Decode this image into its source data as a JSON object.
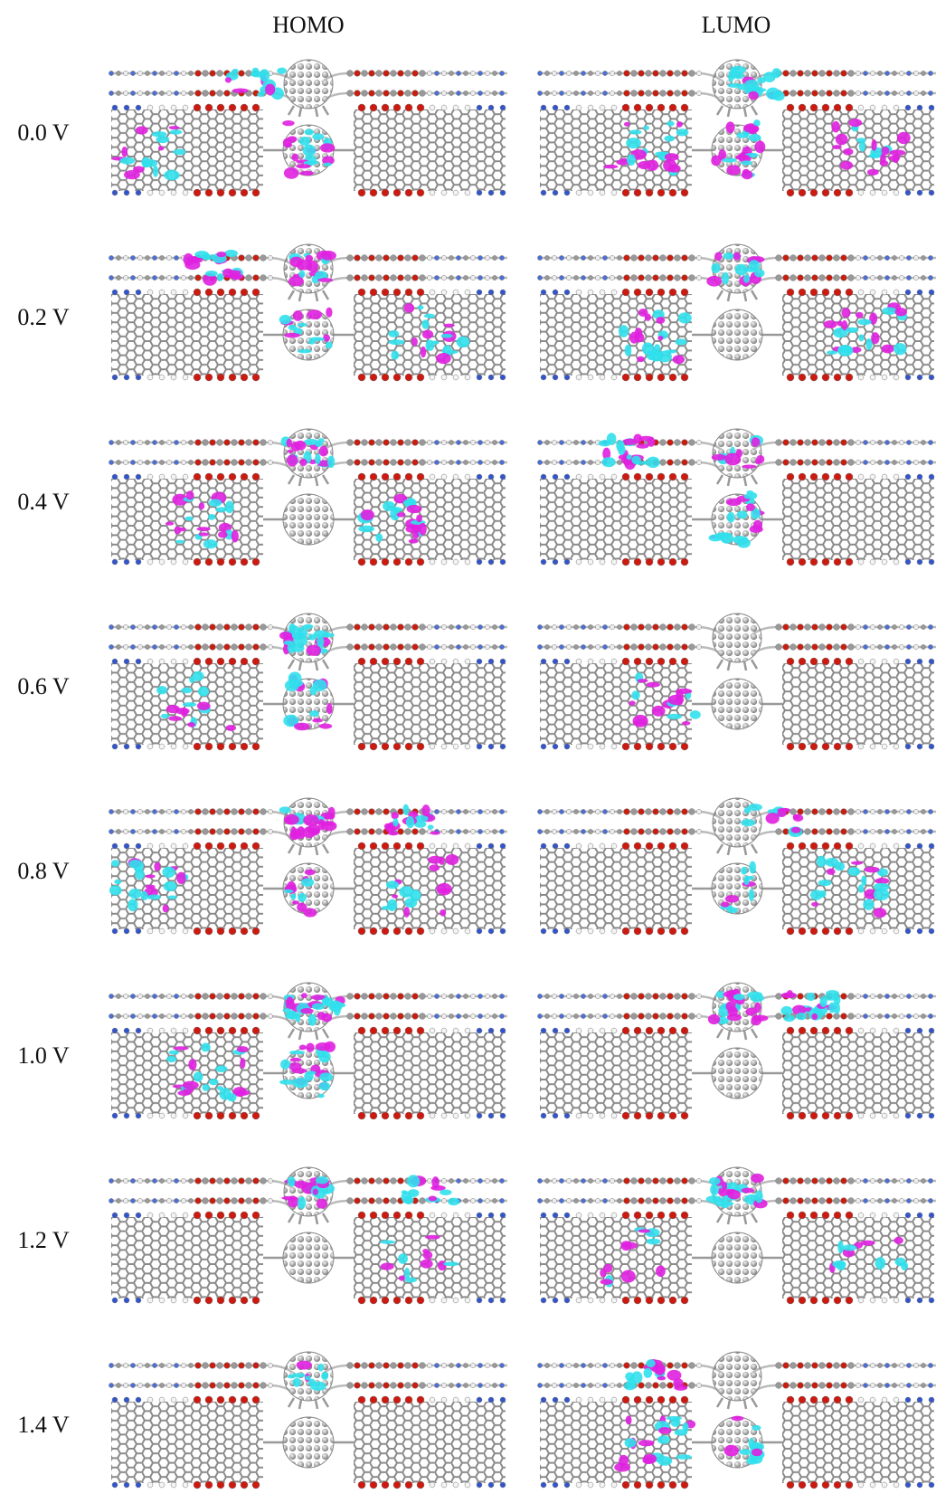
{
  "columns": [
    "HOMO",
    "LUMO"
  ],
  "rows": [
    "0.0 V",
    "0.2 V",
    "0.4 V",
    "0.6 V",
    "0.8 V",
    "1.0 V",
    "1.2 V",
    "1.4 V"
  ]
}
